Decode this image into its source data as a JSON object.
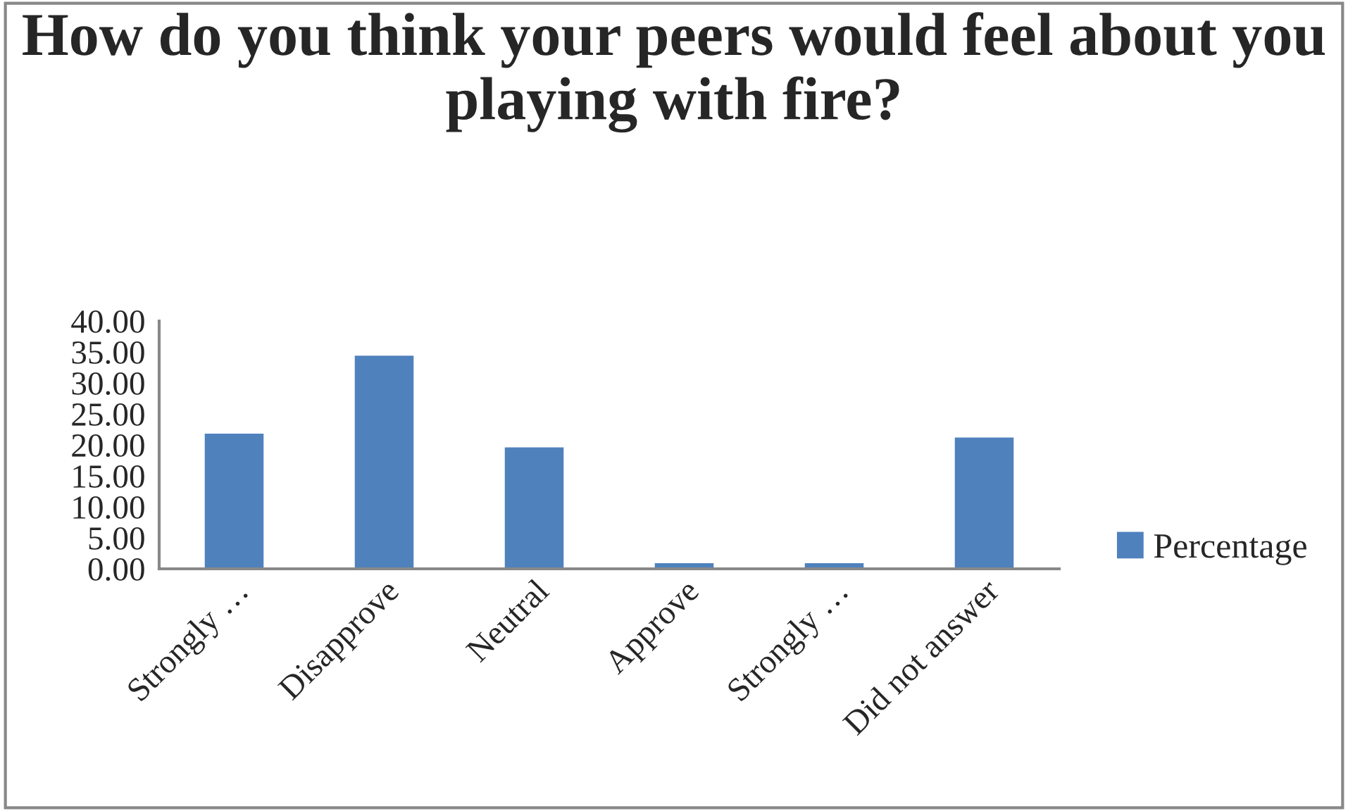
{
  "chart_data": {
    "type": "bar",
    "title": "How do you think your peers would feel about you playing with fire?",
    "categories": [
      "Strongly …",
      "Disapprove",
      "Neutral",
      "Approve",
      "Strongly …",
      "Did not answer"
    ],
    "series": [
      {
        "name": "Percentage",
        "color": "#4f81bd",
        "values": [
          21.9,
          34.5,
          19.7,
          1.0,
          1.0,
          21.3
        ]
      }
    ],
    "ylim": [
      0,
      40
    ],
    "yticks": [
      {
        "value": 0,
        "label": "0.00"
      },
      {
        "value": 5,
        "label": "5.00"
      },
      {
        "value": 10,
        "label": "10.00"
      },
      {
        "value": 15,
        "label": "15.00"
      },
      {
        "value": 20,
        "label": "20.00"
      },
      {
        "value": 25,
        "label": "25.00"
      },
      {
        "value": 30,
        "label": "30.00"
      },
      {
        "value": 35,
        "label": "35.00"
      },
      {
        "value": 40,
        "label": "40.00"
      }
    ],
    "grid": false,
    "legend": "right"
  }
}
